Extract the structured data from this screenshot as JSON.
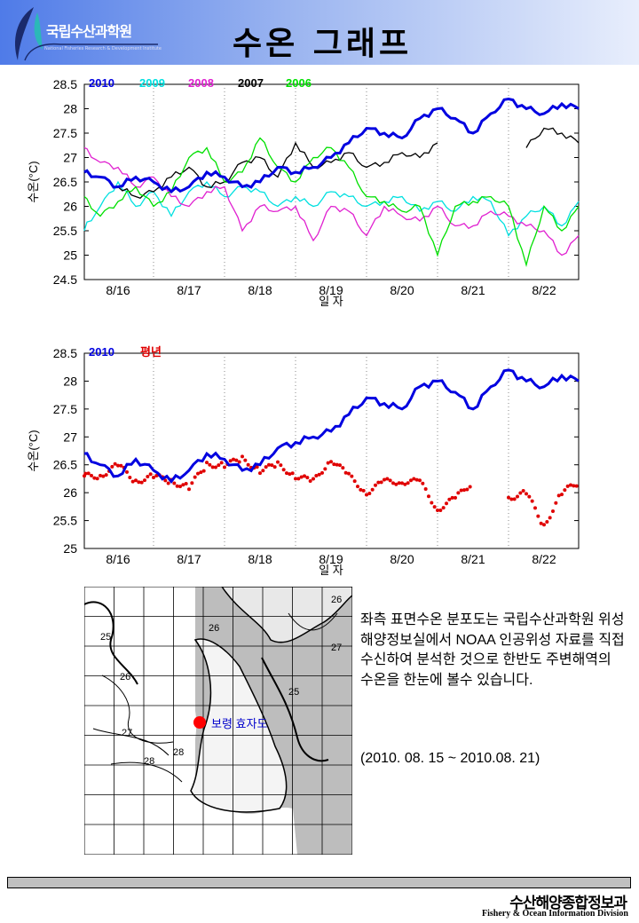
{
  "header": {
    "logo_text": "국립수산과학원",
    "logo_subtext": "National Fisheries Research & Development Institute",
    "title": "수온 그래프"
  },
  "chart_data": [
    {
      "type": "line",
      "title": "",
      "xlabel": "일 자",
      "ylabel": "수온(°C)",
      "ylim": [
        24.5,
        28.5
      ],
      "yticks": [
        "24.5",
        "25",
        "25.5",
        "26",
        "26.5",
        "27",
        "27.5",
        "28",
        "28.5"
      ],
      "xlim_days": [
        0,
        7
      ],
      "xticks": [
        "8/16",
        "8/17",
        "8/18",
        "8/19",
        "8/20",
        "8/21",
        "8/22"
      ],
      "x_step_days": 0.25,
      "series": [
        {
          "name": "2009",
          "color": "#00e0e0",
          "values": [
            25.5,
            26.0,
            26.5,
            26.0,
            26.3,
            25.8,
            26.3,
            26.5,
            26.2,
            26.4,
            26.3,
            26.0,
            26.2,
            26.0,
            26.3,
            26.2,
            26.0,
            26.1,
            26.2,
            25.9,
            26.1,
            25.9,
            26.2,
            26.1,
            25.4,
            25.8,
            26.0,
            25.6,
            26.1
          ]
        },
        {
          "name": "2008",
          "color": "#e020d0",
          "values": [
            27.2,
            26.9,
            26.8,
            26.4,
            26.6,
            26.2,
            26.0,
            26.3,
            26.4,
            25.5,
            26.0,
            25.9,
            26.0,
            25.3,
            26.0,
            25.9,
            25.4,
            26.0,
            25.8,
            25.7,
            26.0,
            25.6,
            25.6,
            25.9,
            25.8,
            25.6,
            25.5,
            25.0,
            25.4
          ]
        },
        {
          "name": "2007",
          "color": "#000000",
          "values": [
            null,
            null,
            26.4,
            26.2,
            26.3,
            26.6,
            26.8,
            26.4,
            26.5,
            26.9,
            27.0,
            26.6,
            27.3,
            26.8,
            26.9,
            27.1,
            26.8,
            26.9,
            27.1,
            27.0,
            27.3,
            null,
            null,
            null,
            null,
            27.2,
            27.6,
            27.5,
            27.3
          ]
        },
        {
          "name": "2006",
          "color": "#00e000",
          "values": [
            26.2,
            25.8,
            26.1,
            26.4,
            26.0,
            26.3,
            27.0,
            27.2,
            26.5,
            26.7,
            27.4,
            26.8,
            26.5,
            27.0,
            27.2,
            26.8,
            26.2,
            26.1,
            25.9,
            26.0,
            25.0,
            26.0,
            26.1,
            26.2,
            26.0,
            24.8,
            26.0,
            25.5,
            26.0
          ]
        },
        {
          "name": "2010",
          "color": "#0000e0",
          "values": [
            26.7,
            26.6,
            26.4,
            26.6,
            26.5,
            26.3,
            26.4,
            26.7,
            26.6,
            26.4,
            26.5,
            26.8,
            26.7,
            26.8,
            27.0,
            27.3,
            27.6,
            27.5,
            27.4,
            27.8,
            28.0,
            27.8,
            27.5,
            27.9,
            28.2,
            28.0,
            27.9,
            28.1,
            28.0
          ]
        }
      ],
      "legend": [
        "2010",
        "2009",
        "2008",
        "2007",
        "2006"
      ],
      "legend_placement": "top-left"
    },
    {
      "type": "line",
      "title": "",
      "xlabel": "일 자",
      "ylabel": "수온(°C)",
      "ylim": [
        25,
        28.5
      ],
      "yticks": [
        "25",
        "25.5",
        "26",
        "26.5",
        "27",
        "27.5",
        "28",
        "28.5"
      ],
      "xlim_days": [
        0,
        7
      ],
      "xticks": [
        "8/16",
        "8/17",
        "8/18",
        "8/19",
        "8/20",
        "8/21",
        "8/22"
      ],
      "x_step_days": 0.25,
      "series": [
        {
          "name": "평년",
          "color": "#e00000",
          "style": "dots",
          "values": [
            26.3,
            26.3,
            26.5,
            26.2,
            26.3,
            26.2,
            26.1,
            26.5,
            26.5,
            26.6,
            26.4,
            26.5,
            26.3,
            26.2,
            26.6,
            26.3,
            26.0,
            26.2,
            26.2,
            26.2,
            25.7,
            25.9,
            26.2,
            null,
            25.9,
            26.0,
            25.4,
            26.0,
            26.2
          ]
        },
        {
          "name": "2010",
          "color": "#0000e0",
          "style": "line",
          "values": [
            26.7,
            26.5,
            26.3,
            26.6,
            26.4,
            26.2,
            26.4,
            26.7,
            26.6,
            26.4,
            26.5,
            26.8,
            26.9,
            27.0,
            27.1,
            27.4,
            27.7,
            27.6,
            27.5,
            27.9,
            28.0,
            27.8,
            27.5,
            27.9,
            28.2,
            28.0,
            27.9,
            28.1,
            28.0
          ]
        }
      ],
      "legend": [
        "2010",
        "평년"
      ],
      "legend_placement": "top-left"
    }
  ],
  "map": {
    "contour_labels": [
      "25",
      "26",
      "27",
      "28",
      "28",
      "26",
      "25",
      "27",
      "26"
    ],
    "marker_label": "보령 효자도",
    "marker_color": "#ff0000"
  },
  "description": "좌측 표면수온 분포도는 국립수산과학원 위성해양정보실에서 NOAA 인공위성 자료를 직접 수신하여 분석한 것으로  한반도 주변해역의 수온을 한눈에 볼수 있습니다.",
  "period": "(2010. 08. 15 ~ 2010.08. 21)",
  "footer": {
    "kr": "수산해양종합정보과",
    "en": "Fishery & Ocean Information Division"
  }
}
